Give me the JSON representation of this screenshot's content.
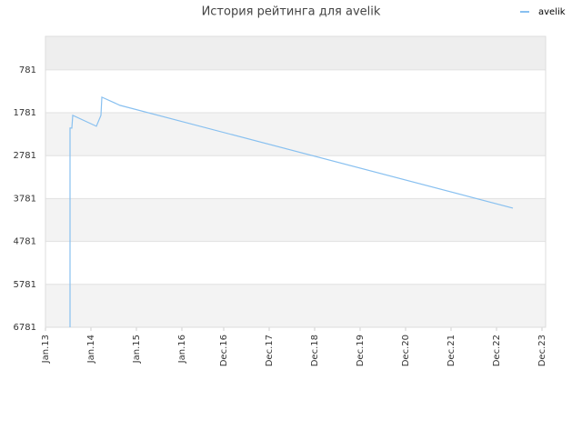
{
  "chart_data": {
    "type": "line",
    "title": "История рейтинга для avelik",
    "series": [
      {
        "name": "avelik",
        "color": "#88c0f0",
        "x": [
          2013.54,
          2013.54,
          2013.58,
          2013.6,
          2014.12,
          2014.22,
          2014.24,
          2014.64,
          2023.28
        ],
        "values": [
          6781,
          2138,
          2138,
          1841,
          2095,
          1841,
          1417,
          1608,
          4003
        ]
      }
    ],
    "xlim": [
      2013,
      2024
    ],
    "xticks": [
      {
        "value": 2013,
        "label": "Jan.13"
      },
      {
        "value": 2014,
        "label": "Jan.14"
      },
      {
        "value": 2015,
        "label": "Jan.15"
      },
      {
        "value": 2016,
        "label": "Jan.16"
      },
      {
        "value": 2016.92,
        "label": "Dec.16"
      },
      {
        "value": 2017.92,
        "label": "Dec.17"
      },
      {
        "value": 2018.92,
        "label": "Dec.18"
      },
      {
        "value": 2019.92,
        "label": "Dec.19"
      },
      {
        "value": 2020.92,
        "label": "Dec.20"
      },
      {
        "value": 2021.92,
        "label": "Dec.21"
      },
      {
        "value": 2022.92,
        "label": "Dec.22"
      },
      {
        "value": 2023.92,
        "label": "Dec.23"
      }
    ],
    "ylim": [
      6781,
      0
    ],
    "yticks": [
      781,
      1781,
      2781,
      3781,
      4781,
      5781,
      6781
    ],
    "legend": "top-right",
    "grid": true
  }
}
